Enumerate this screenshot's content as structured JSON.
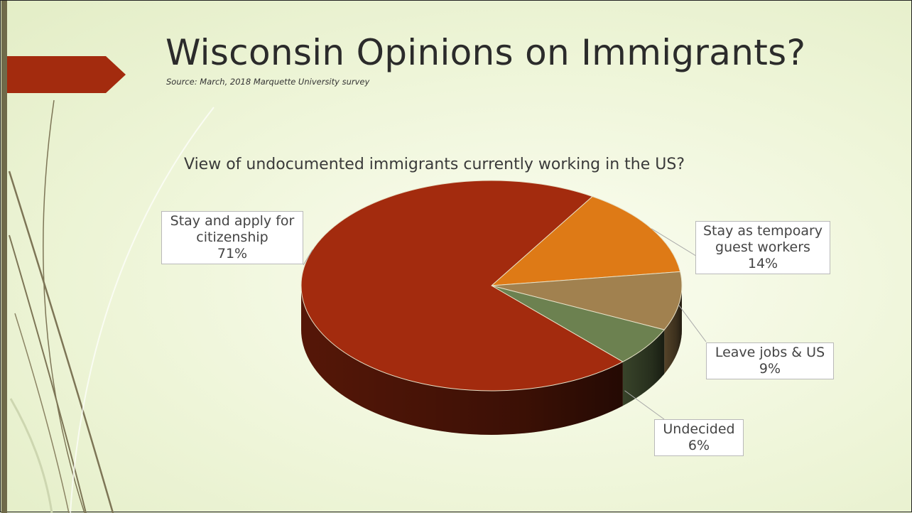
{
  "slide": {
    "title": "Wisconsin Opinions on Immigrants?",
    "source": "Source: March, 2018 Marquette University survey"
  },
  "chart_data": {
    "type": "pie",
    "title": "View of undocumented immigrants currently working in the US?",
    "slices": [
      {
        "label": "Stay and apply for citizenship",
        "value": 71,
        "value_label": "71%",
        "color": "#a32b0e"
      },
      {
        "label": "Stay as tempoary guest workers",
        "value": 14,
        "value_label": "14%",
        "color": "#de7a16"
      },
      {
        "label": "Leave jobs & US",
        "value": 9,
        "value_label": "9%",
        "color": "#a1814f"
      },
      {
        "label": "Undecided",
        "value": 6,
        "value_label": "6%",
        "color": "#6c8150"
      }
    ],
    "style": "3d"
  },
  "colors": {
    "accent_arrow": "#a32b0e",
    "left_bar": "#6f6a4a"
  }
}
